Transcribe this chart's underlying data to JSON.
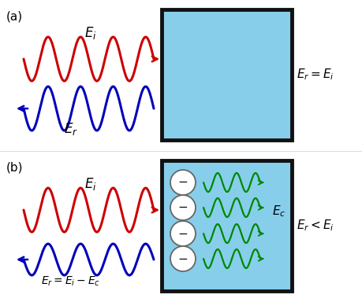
{
  "fig_width": 4.59,
  "fig_height": 3.84,
  "bg_color": "#ffffff",
  "light_blue": "#87CEEB",
  "box_edge_color": "#111111",
  "red_color": "#cc0000",
  "blue_color": "#0000bb",
  "green_color": "#008800",
  "label_a": "(a)",
  "label_b": "(b)",
  "text_Ei_a": "$E_i$",
  "text_Er_a": "$E_r$",
  "text_eq_a": "$E_r = E_i$",
  "text_Ei_b": "$E_i$",
  "text_Er_b": "$E_r = E_i - E_c$",
  "text_eq_b": "$E_r < E_i$",
  "text_Ec": "$E_c$"
}
